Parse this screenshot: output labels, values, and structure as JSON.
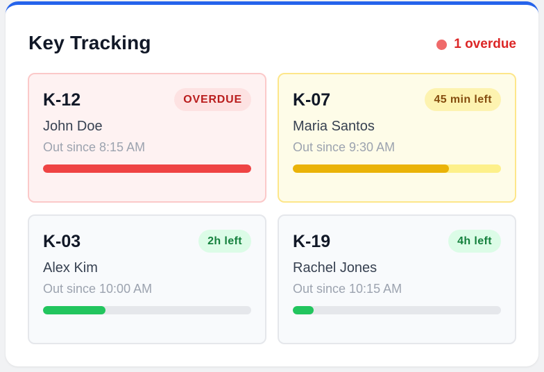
{
  "panel": {
    "title": "Key Tracking",
    "overdue_summary": "1 overdue",
    "accent_color": "#2563eb"
  },
  "cards": [
    {
      "key_id": "K-12",
      "status": "OVERDUE",
      "person": "John Doe",
      "since": "Out since 8:15 AM",
      "progress": 1.0,
      "bar_color": "#ef4444"
    },
    {
      "key_id": "K-07",
      "status": "45 min left",
      "person": "Maria Santos",
      "since": "Out since 9:30 AM",
      "progress": 0.75,
      "bar_color": "#eab308"
    },
    {
      "key_id": "K-03",
      "status": "2h left",
      "person": "Alex Kim",
      "since": "Out since 10:00 AM",
      "progress": 0.3,
      "bar_color": "#22c55e"
    },
    {
      "key_id": "K-19",
      "status": "4h left",
      "person": "Rachel Jones",
      "since": "Out since 10:15 AM",
      "progress": 0.1,
      "bar_color": "#22c55e"
    }
  ]
}
